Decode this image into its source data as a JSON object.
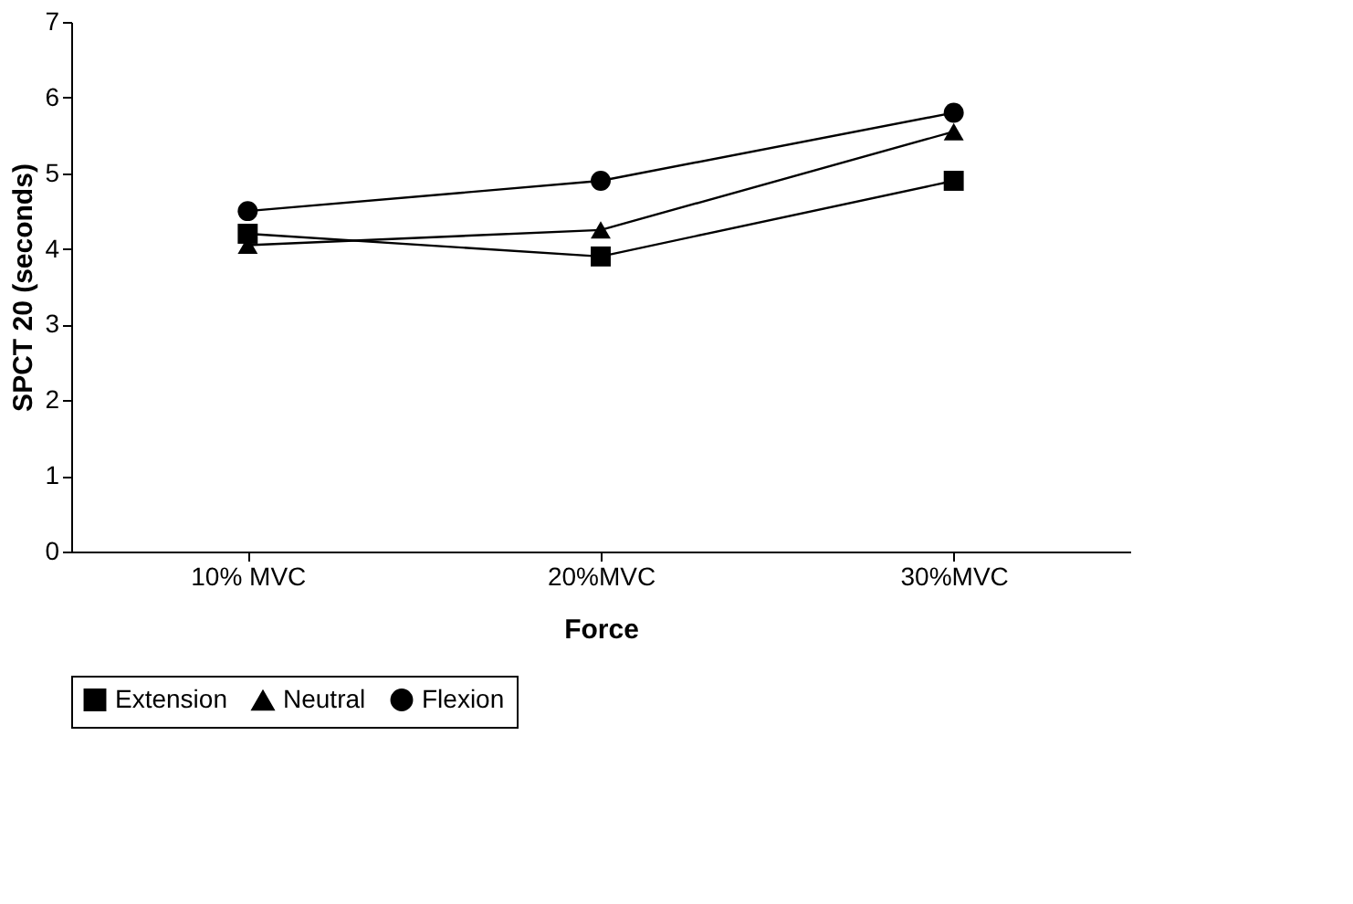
{
  "chart_data": {
    "type": "line",
    "xlabel": "Force",
    "ylabel": "SPCT 20 (seconds)",
    "categories": [
      "10% MVC",
      "20%MVC",
      "30%MVC"
    ],
    "ylim": [
      0,
      7
    ],
    "yticks": [
      0,
      1,
      2,
      3,
      4,
      5,
      6,
      7
    ],
    "grid": false,
    "legend": "bottom",
    "series": [
      {
        "name": "Extension",
        "color": "#000000",
        "marker": "square",
        "values": [
          4.2,
          3.9,
          4.9
        ]
      },
      {
        "name": "Neutral",
        "color": "#000000",
        "marker": "triangle",
        "values": [
          4.05,
          4.25,
          5.55
        ]
      },
      {
        "name": "Flexion",
        "color": "#000000",
        "marker": "circle",
        "values": [
          4.5,
          4.9,
          5.8
        ]
      }
    ]
  }
}
